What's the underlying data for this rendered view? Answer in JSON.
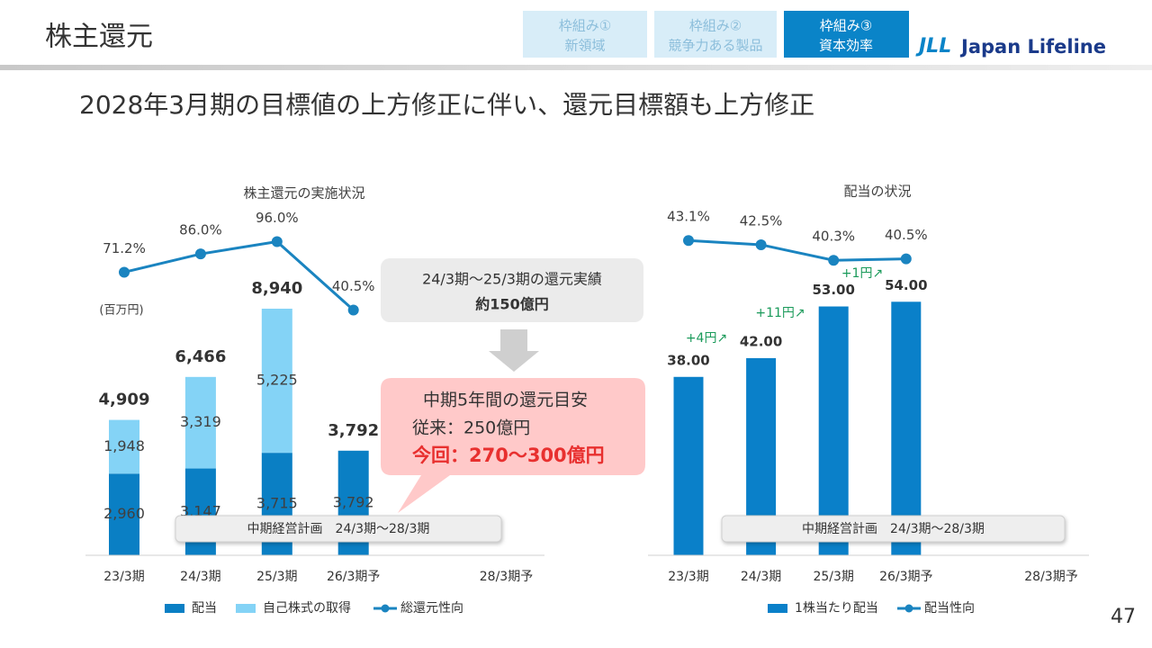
{
  "header": {
    "title": "株主還元",
    "tabs": [
      [
        "枠組み①",
        "新領域"
      ],
      [
        "枠組み②",
        "競争力ある製品"
      ],
      [
        "枠組み③",
        "資本効率"
      ]
    ],
    "logo_mark": "JLL",
    "logo": "Japan Lifeline"
  },
  "subtitle": "2028年3月期の目標値の上方修正に伴い、還元目標額も上方修正",
  "callouts": {
    "actual": {
      "title": "24/3期～25/3期の還元実績",
      "value": "約150億円"
    },
    "target": {
      "title": "中期5年間の還元目安",
      "previous": "従来：250億円",
      "current": "今回：270～300億円"
    }
  },
  "page_number": "47",
  "chart_data": [
    {
      "type": "bar",
      "title": "株主還元の実施状況",
      "unit_label": "(百万円)",
      "band_label": "中期経営計画　24/3期～28/3期",
      "categories": [
        "23/3期",
        "24/3期",
        "25/3期",
        "26/3期予",
        null,
        "28/3期予"
      ],
      "ylim": [
        0,
        10000
      ],
      "y2lim": [
        0,
        100
      ],
      "series": [
        {
          "name": "配当",
          "color": "#0a7fc4",
          "values": [
            2960,
            3147,
            3715,
            3792,
            null,
            null
          ],
          "value_labels": [
            "2,960",
            "3,147",
            "3,715",
            "3,792",
            null,
            null
          ]
        },
        {
          "name": "自己株式の取得",
          "color": "#84d3f6",
          "values": [
            1948,
            3319,
            5225,
            null,
            null,
            null
          ],
          "value_labels": [
            "1,948",
            "3,319",
            "5,225",
            null,
            null,
            null
          ]
        },
        {
          "name": "総還元性向",
          "color": "#1a84c0",
          "axis": "y2",
          "values": [
            71.2,
            86.0,
            96.0,
            40.5,
            null,
            null
          ],
          "value_labels": [
            "71.2%",
            "86.0%",
            "96.0%",
            "40.5%",
            null,
            null
          ]
        }
      ],
      "totals": [
        4909,
        6466,
        8940,
        3792,
        null,
        null
      ],
      "total_labels": [
        "4,909",
        "6,466",
        "8,940",
        "3,792",
        null,
        null
      ]
    },
    {
      "type": "bar",
      "title": "配当の状況",
      "band_label": "中期経営計画　24/3期～28/3期",
      "categories": [
        "23/3期",
        "24/3期",
        "25/3期",
        "26/3期予",
        null,
        "28/3期予"
      ],
      "ylim": [
        0,
        60
      ],
      "y2lim": [
        0,
        50
      ],
      "series": [
        {
          "name": "1株当たり配当",
          "color": "#0a80c9",
          "values": [
            38,
            42,
            53,
            54,
            null,
            null
          ],
          "value_labels": [
            "38.00",
            "42.00",
            "53.00",
            "54.00",
            null,
            null
          ],
          "label_style": "bold-above"
        },
        {
          "name": "配当性向",
          "color": "#1a84c0",
          "axis": "y2",
          "values": [
            43.1,
            42.5,
            40.3,
            40.5,
            null,
            null
          ],
          "value_labels": [
            "43.1%",
            "42.5%",
            "40.3%",
            "40.5%",
            null,
            null
          ]
        }
      ],
      "annotations": [
        "+4円↗",
        "+11円↗",
        "+1円↗"
      ]
    }
  ]
}
